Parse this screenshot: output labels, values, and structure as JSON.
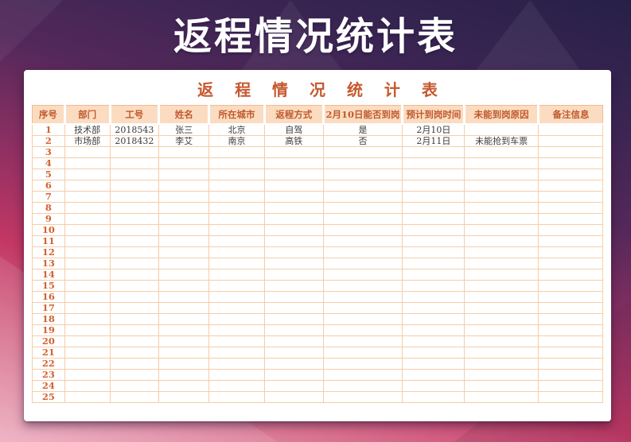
{
  "page": {
    "title": "返程情况统计表"
  },
  "card": {
    "title": "返 程 情 况 统 计 表",
    "columns": [
      "序号",
      "部门",
      "工号",
      "姓名",
      "所在城市",
      "返程方式",
      "2月10日能否到岗",
      "预计到岗时间",
      "未能到岗原因",
      "备注信息"
    ],
    "rows": [
      [
        "1",
        "技术部",
        "2018543",
        "张三",
        "北京",
        "自驾",
        "是",
        "2月10日",
        "",
        ""
      ],
      [
        "2",
        "市场部",
        "2018432",
        "李艾",
        "南京",
        "高铁",
        "否",
        "2月11日",
        "未能抢到车票",
        ""
      ],
      [
        "3",
        "",
        "",
        "",
        "",
        "",
        "",
        "",
        "",
        ""
      ],
      [
        "4",
        "",
        "",
        "",
        "",
        "",
        "",
        "",
        "",
        ""
      ],
      [
        "5",
        "",
        "",
        "",
        "",
        "",
        "",
        "",
        "",
        ""
      ],
      [
        "6",
        "",
        "",
        "",
        "",
        "",
        "",
        "",
        "",
        ""
      ],
      [
        "7",
        "",
        "",
        "",
        "",
        "",
        "",
        "",
        "",
        ""
      ],
      [
        "8",
        "",
        "",
        "",
        "",
        "",
        "",
        "",
        "",
        ""
      ],
      [
        "9",
        "",
        "",
        "",
        "",
        "",
        "",
        "",
        "",
        ""
      ],
      [
        "10",
        "",
        "",
        "",
        "",
        "",
        "",
        "",
        "",
        ""
      ],
      [
        "11",
        "",
        "",
        "",
        "",
        "",
        "",
        "",
        "",
        ""
      ],
      [
        "12",
        "",
        "",
        "",
        "",
        "",
        "",
        "",
        "",
        ""
      ],
      [
        "13",
        "",
        "",
        "",
        "",
        "",
        "",
        "",
        "",
        ""
      ],
      [
        "14",
        "",
        "",
        "",
        "",
        "",
        "",
        "",
        "",
        ""
      ],
      [
        "15",
        "",
        "",
        "",
        "",
        "",
        "",
        "",
        "",
        ""
      ],
      [
        "16",
        "",
        "",
        "",
        "",
        "",
        "",
        "",
        "",
        ""
      ],
      [
        "17",
        "",
        "",
        "",
        "",
        "",
        "",
        "",
        "",
        ""
      ],
      [
        "18",
        "",
        "",
        "",
        "",
        "",
        "",
        "",
        "",
        ""
      ],
      [
        "19",
        "",
        "",
        "",
        "",
        "",
        "",
        "",
        "",
        ""
      ],
      [
        "20",
        "",
        "",
        "",
        "",
        "",
        "",
        "",
        "",
        ""
      ],
      [
        "21",
        "",
        "",
        "",
        "",
        "",
        "",
        "",
        "",
        ""
      ],
      [
        "22",
        "",
        "",
        "",
        "",
        "",
        "",
        "",
        "",
        ""
      ],
      [
        "23",
        "",
        "",
        "",
        "",
        "",
        "",
        "",
        "",
        ""
      ],
      [
        "24",
        "",
        "",
        "",
        "",
        "",
        "",
        "",
        "",
        ""
      ],
      [
        "25",
        "",
        "",
        "",
        "",
        "",
        "",
        "",
        "",
        ""
      ]
    ]
  },
  "colors": {
    "banner_text": "#ffffff",
    "accent_orange": "#c05a2e",
    "row_number_orange": "#d2622f",
    "header_bg": "#fbdcc1",
    "grid_line": "#f6cda9",
    "bg_top_purple": "#262048",
    "bg_mid_magenta": "#c23764",
    "bg_bottom_pink": "#ecadbf",
    "card_bg": "#ffffff"
  }
}
